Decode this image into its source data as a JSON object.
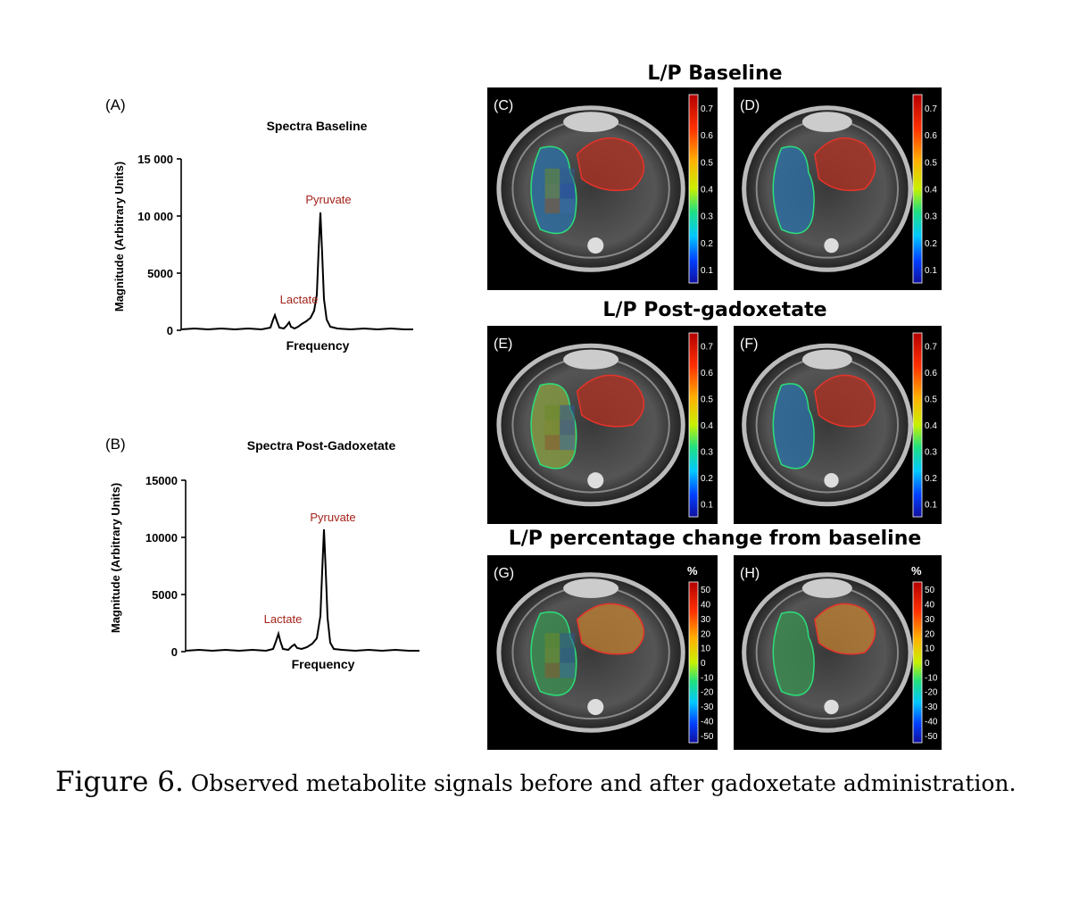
{
  "colors": {
    "peak_label": "#a3221a",
    "axis": "#000000",
    "roi_green": "#2be07a",
    "roi_red": "#e8332a"
  },
  "spectra": [
    {
      "letter": "(A)",
      "title": "Spectra Baseline",
      "xlabel": "Frequency",
      "ylabel": "Magnitude (Arbitrary Units)",
      "yticks": [
        "15 000",
        "10 000",
        "5000",
        "0"
      ],
      "peaks": {
        "pyruvate": "Pyruvate",
        "lactate": "Lactate"
      }
    },
    {
      "letter": "(B)",
      "title": "Spectra Post-Gadoxetate",
      "xlabel": "Frequency",
      "ylabel": "Magnitude (Arbitrary Units)",
      "yticks": [
        "15000",
        "10000",
        "5000",
        "0"
      ],
      "peaks": {
        "pyruvate": "Pyruvate",
        "lactate": "Lactate"
      }
    }
  ],
  "chart_data": [
    {
      "type": "line",
      "title": "Spectra Baseline",
      "xlabel": "Frequency",
      "ylabel": "Magnitude (Arbitrary Units)",
      "ylim": [
        0,
        15000
      ],
      "annotations": [
        {
          "text": "Lactate",
          "y": 1400
        },
        {
          "text": "Pyruvate",
          "y": 10300
        }
      ]
    },
    {
      "type": "line",
      "title": "Spectra Post-Gadoxetate",
      "xlabel": "Frequency",
      "ylabel": "Magnitude (Arbitrary Units)",
      "ylim": [
        0,
        15000
      ],
      "annotations": [
        {
          "text": "Lactate",
          "y": 1500
        },
        {
          "text": "Pyruvate",
          "y": 10500
        }
      ]
    }
  ],
  "sections": {
    "baseline": "L/P Baseline",
    "post": "L/P Post-gadoxetate",
    "change": "L/P percentage change from baseline"
  },
  "maps": {
    "letters": [
      "(C)",
      "(D)",
      "(E)",
      "(F)",
      "(G)",
      "(H)"
    ],
    "ratio_ticks": [
      "0.7",
      "0.6",
      "0.5",
      "0.4",
      "0.3",
      "0.2",
      "0.1"
    ],
    "percent_unit": "%",
    "percent_ticks": [
      "50",
      "40",
      "30",
      "20",
      "10",
      "0",
      "-10",
      "-20",
      "-30",
      "-40",
      "-50"
    ]
  },
  "caption": {
    "label": "Figure 6.",
    "text": "Observed metabolite signals before and after gadoxetate administration."
  }
}
